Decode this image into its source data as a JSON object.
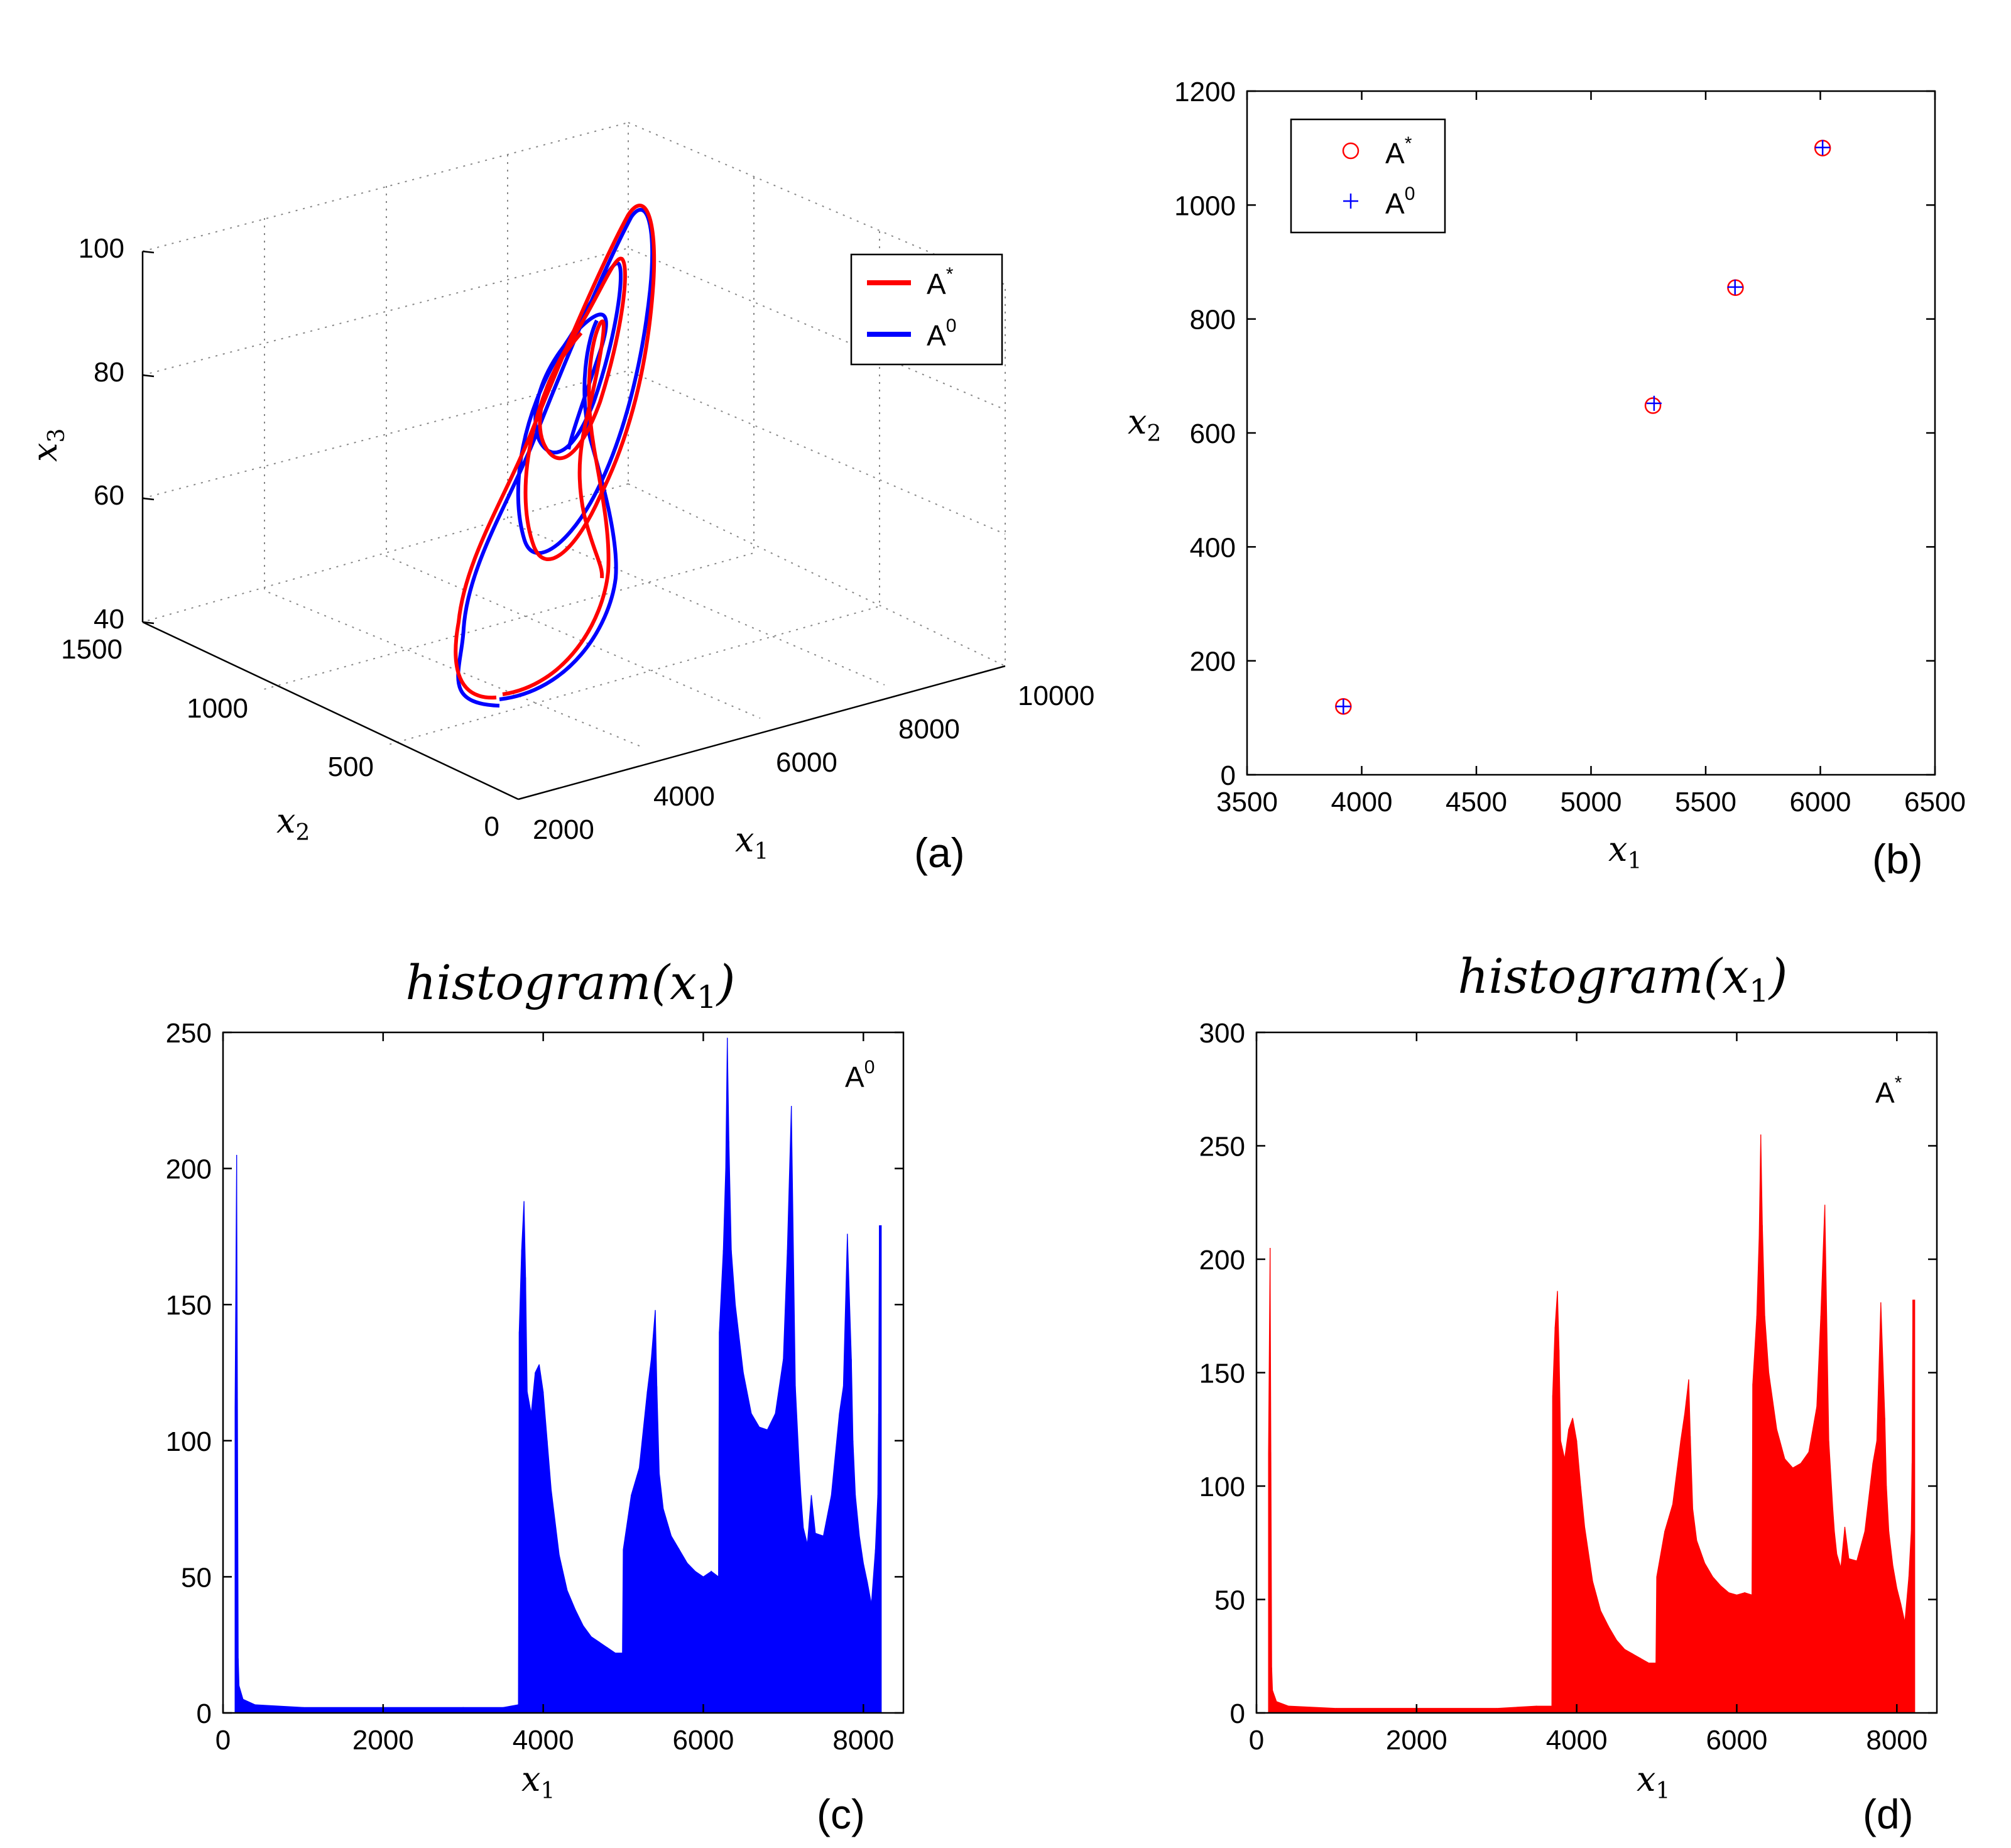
{
  "figure": {
    "panel_labels": [
      "(a)",
      "(b)",
      "(c)",
      "(d)"
    ],
    "series_labels": {
      "A_star": "A",
      "A_star_sup": "*",
      "A_zero": "A",
      "A_zero_sup": "0"
    },
    "colors": {
      "A_star": "#ff0000",
      "A_zero": "#0000ff"
    }
  },
  "chart_data": [
    {
      "type": "line",
      "panel": "(a)",
      "projection": "3d",
      "xlabel": "x",
      "xlabel_sub": "1",
      "ylabel": "x",
      "ylabel_sub": "2",
      "zlabel": "x",
      "zlabel_sub": "3",
      "xlim": [
        2000,
        10000
      ],
      "ylim": [
        0,
        1500
      ],
      "zlim": [
        40,
        100
      ],
      "xticks": [
        "2000",
        "4000",
        "6000",
        "8000",
        "10000"
      ],
      "yticks": [
        "0",
        "500",
        "1000",
        "1500"
      ],
      "zticks": [
        "40",
        "60",
        "80",
        "100"
      ],
      "grid": true,
      "legend": "top-right",
      "series": [
        {
          "name": "A*",
          "color": "#ff0000"
        },
        {
          "name": "A0",
          "color": "#0000ff"
        }
      ]
    },
    {
      "type": "scatter",
      "panel": "(b)",
      "xlabel": "x",
      "xlabel_sub": "1",
      "ylabel": "x",
      "ylabel_sub": "2",
      "xlim": [
        3500,
        6500
      ],
      "ylim": [
        0,
        1200
      ],
      "xticks": [
        "3500",
        "4000",
        "4500",
        "5000",
        "5500",
        "6000",
        "6500"
      ],
      "yticks": [
        "0",
        "200",
        "400",
        "600",
        "800",
        "1000",
        "1200"
      ],
      "grid": false,
      "legend": "top-left",
      "series": [
        {
          "name": "A*",
          "marker": "circle",
          "color": "#ff0000",
          "points": [
            [
              3920,
              120
            ],
            [
              5270,
              648
            ],
            [
              5630,
              855
            ],
            [
              6010,
              1100
            ]
          ]
        },
        {
          "name": "A0",
          "marker": "plus",
          "color": "#0000ff",
          "points": [
            [
              3920,
              120
            ],
            [
              5275,
              652
            ],
            [
              5628,
              856
            ],
            [
              6010,
              1101
            ]
          ]
        }
      ]
    },
    {
      "type": "bar",
      "panel": "(c)",
      "title": "histogram(x",
      "title_sub": "1",
      "title_end": ")",
      "xlabel": "x",
      "xlabel_sub": "1",
      "xlim": [
        0,
        8500
      ],
      "ylim": [
        0,
        250
      ],
      "xticks": [
        "0",
        "2000",
        "4000",
        "6000",
        "8000"
      ],
      "yticks": [
        "0",
        "50",
        "100",
        "150",
        "200",
        "250"
      ],
      "annotation": "A0",
      "color": "#0000ff",
      "x": [
        150,
        170,
        180,
        190,
        200,
        250,
        400,
        1000,
        2000,
        3000,
        3500,
        3690,
        3700,
        3730,
        3760,
        3780,
        3800,
        3850,
        3900,
        3950,
        4000,
        4050,
        4100,
        4200,
        4300,
        4400,
        4500,
        4600,
        4700,
        4800,
        4900,
        4990,
        5000,
        5100,
        5200,
        5300,
        5350,
        5400,
        5420,
        5450,
        5500,
        5600,
        5700,
        5800,
        5900,
        6000,
        6100,
        6190,
        6200,
        6250,
        6280,
        6300,
        6320,
        6350,
        6400,
        6500,
        6600,
        6700,
        6800,
        6900,
        7000,
        7050,
        7100,
        7150,
        7200,
        7220,
        7250,
        7300,
        7350,
        7400,
        7500,
        7600,
        7700,
        7750,
        7800,
        7850,
        7870,
        7900,
        7950,
        8000,
        8050,
        8100,
        8150,
        8180,
        8190,
        8200
      ],
      "values": [
        112,
        205,
        115,
        20,
        10,
        5,
        3,
        2,
        2,
        2,
        2,
        3,
        140,
        170,
        188,
        160,
        118,
        110,
        125,
        128,
        118,
        100,
        82,
        58,
        45,
        38,
        32,
        28,
        26,
        24,
        22,
        22,
        60,
        80,
        90,
        118,
        130,
        148,
        120,
        88,
        75,
        65,
        60,
        55,
        52,
        50,
        52,
        50,
        140,
        170,
        200,
        248,
        210,
        170,
        150,
        125,
        110,
        105,
        104,
        110,
        130,
        170,
        223,
        120,
        90,
        80,
        68,
        62,
        80,
        66,
        65,
        80,
        110,
        120,
        176,
        130,
        100,
        80,
        65,
        55,
        48,
        40,
        60,
        80,
        110,
        179
      ]
    },
    {
      "type": "bar",
      "panel": "(d)",
      "title": "histogram(x",
      "title_sub": "1",
      "title_end": ")",
      "xlabel": "x",
      "xlabel_sub": "1",
      "xlim": [
        0,
        8500
      ],
      "ylim": [
        0,
        300
      ],
      "xticks": [
        "0",
        "2000",
        "4000",
        "6000",
        "8000"
      ],
      "yticks": [
        "0",
        "50",
        "100",
        "150",
        "200",
        "250",
        "300"
      ],
      "annotation": "A*",
      "color": "#ff0000",
      "x": [
        150,
        170,
        180,
        190,
        200,
        250,
        400,
        1000,
        2000,
        3000,
        3500,
        3690,
        3700,
        3730,
        3760,
        3780,
        3800,
        3850,
        3900,
        3950,
        4000,
        4050,
        4100,
        4200,
        4300,
        4400,
        4500,
        4600,
        4700,
        4800,
        4900,
        4990,
        5000,
        5100,
        5200,
        5300,
        5350,
        5400,
        5420,
        5450,
        5500,
        5600,
        5700,
        5800,
        5900,
        6000,
        6100,
        6190,
        6200,
        6250,
        6280,
        6300,
        6320,
        6350,
        6400,
        6500,
        6600,
        6700,
        6800,
        6900,
        7000,
        7050,
        7100,
        7150,
        7200,
        7220,
        7250,
        7300,
        7350,
        7400,
        7500,
        7600,
        7700,
        7750,
        7800,
        7850,
        7870,
        7900,
        7950,
        8000,
        8050,
        8100,
        8150,
        8180,
        8190,
        8200
      ],
      "values": [
        114,
        205,
        115,
        20,
        10,
        5,
        3,
        2,
        2,
        2,
        3,
        3,
        140,
        170,
        186,
        160,
        120,
        112,
        125,
        130,
        120,
        100,
        82,
        58,
        45,
        38,
        32,
        28,
        26,
        24,
        22,
        22,
        60,
        80,
        92,
        120,
        132,
        147,
        122,
        90,
        76,
        66,
        60,
        56,
        53,
        52,
        53,
        52,
        145,
        175,
        210,
        255,
        215,
        175,
        150,
        125,
        112,
        108,
        110,
        115,
        135,
        175,
        224,
        120,
        90,
        80,
        70,
        64,
        82,
        68,
        67,
        80,
        110,
        120,
        181,
        130,
        100,
        80,
        65,
        55,
        48,
        40,
        60,
        80,
        110,
        182
      ]
    }
  ]
}
